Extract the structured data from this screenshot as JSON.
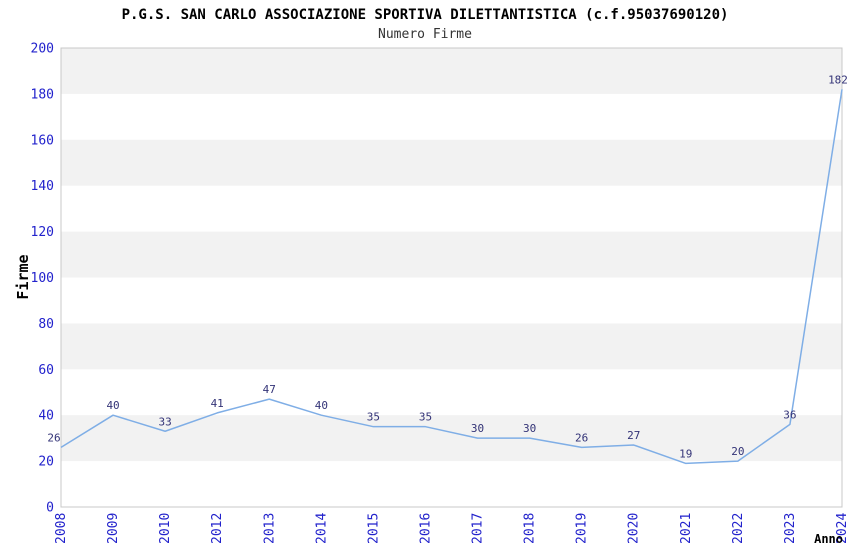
{
  "chart_data": {
    "type": "line",
    "title": "P.G.S. SAN CARLO ASSOCIAZIONE SPORTIVA DILETTANTISTICA (c.f.95037690120)",
    "subtitle": "Numero Firme",
    "xlabel": "Anno",
    "ylabel": "Firme",
    "categories": [
      "2008",
      "2009",
      "2010",
      "2012",
      "2013",
      "2014",
      "2015",
      "2016",
      "2017",
      "2018",
      "2019",
      "2020",
      "2021",
      "2022",
      "2023",
      "2024"
    ],
    "values": [
      26,
      40,
      33,
      41,
      47,
      40,
      35,
      35,
      30,
      30,
      26,
      27,
      19,
      20,
      36,
      182
    ],
    "ylim": [
      0,
      200
    ],
    "yticks": [
      0,
      20,
      40,
      60,
      80,
      100,
      120,
      140,
      160,
      180,
      200
    ],
    "grid": "alternating-horizontal-bands",
    "legend": "none",
    "data_labels_shown": true,
    "colors": {
      "line": "#7faee6",
      "band": "#f2f2f2",
      "plot_border": "#c8c8c8",
      "tick_label": "#2222cc",
      "data_label": "#333377",
      "axis_title": "#000000",
      "background": "#ffffff"
    }
  }
}
